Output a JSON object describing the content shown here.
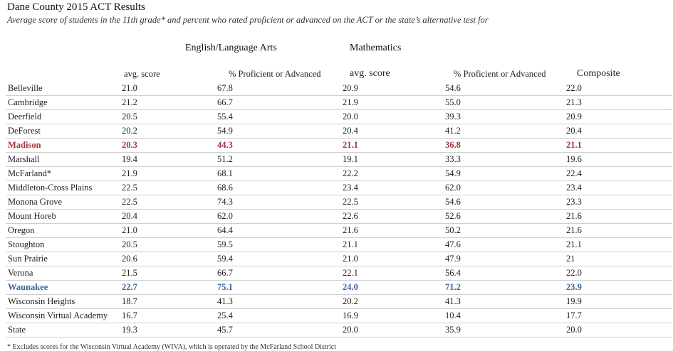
{
  "title": "Dane County 2015 ACT Results",
  "subtitle": "Average score of students in the 11th grade* and percent who rated proficient or advanced on the ACT or the state’s alternative test for",
  "groups": {
    "ela": "English/Language Arts",
    "math": "Mathematics"
  },
  "columns": {
    "ela_avg": "avg. score",
    "ela_pct": "% Proficient or Advanced",
    "math_avg": "avg. score",
    "math_pct": "% Proficient or Advanced",
    "composite": "Composite"
  },
  "rows": [
    [
      "Belleville",
      "21.0",
      "67.8",
      "20.9",
      "54.6",
      "22.0"
    ],
    [
      "Cambridge",
      "21.2",
      "66.7",
      "21.9",
      "55.0",
      "21.3"
    ],
    [
      "Deerfield",
      "20.5",
      "55.4",
      "20.0",
      "39.3",
      "20.9"
    ],
    [
      "DeForest",
      "20.2",
      "54.9",
      "20.4",
      "41.2",
      "20.4"
    ],
    [
      "Madison",
      "20.3",
      "44.3",
      "21.1",
      "36.8",
      "21.1"
    ],
    [
      "Marshall",
      "19.4",
      "51.2",
      "19.1",
      "33.3",
      "19.6"
    ],
    [
      "McFarland*",
      "21.9",
      "68.1",
      "22.2",
      "54.9",
      "22.4"
    ],
    [
      "Middleton-Cross Plains",
      "22.5",
      "68.6",
      "23.4",
      "62.0",
      "23.4"
    ],
    [
      "Monona Grove",
      "22.5",
      "74.3",
      "22.5",
      "54.6",
      "23.3"
    ],
    [
      "Mount Horeb",
      "20.4",
      "62.0",
      "22.6",
      "52.6",
      "21.6"
    ],
    [
      "Oregon",
      "21.0",
      "64.4",
      "21.6",
      "50.2",
      "21.6"
    ],
    [
      "Stoughton",
      "20.5",
      "59.5",
      "21.1",
      "47.6",
      "21.1"
    ],
    [
      "Sun Prairie",
      "20.6",
      "59.4",
      "21.0",
      "47.9",
      "21"
    ],
    [
      "Verona",
      "21.5",
      "66.7",
      "22.1",
      "56.4",
      "22.0"
    ],
    [
      "Waunakee",
      "22.7",
      "75.1",
      "24.0",
      "71.2",
      "23.9"
    ],
    [
      "Wisconsin Heights",
      "18.7",
      "41.3",
      "20.2",
      "41.3",
      "19.9"
    ],
    [
      "Wisconsin Virtual Academy",
      "16.7",
      "25.4",
      "16.9",
      "10.4",
      "17.7"
    ],
    [
      "State",
      "19.3",
      "45.7",
      "20.0",
      "35.9",
      "20.0"
    ]
  ],
  "highlight_colors": {
    "Madison": "#a6333a",
    "Waunakee": "#3a679c"
  },
  "footnote": "* Excludes scores for the Wisconsin Virtual Academy (WIVA), which is operated by the McFarland School District"
}
